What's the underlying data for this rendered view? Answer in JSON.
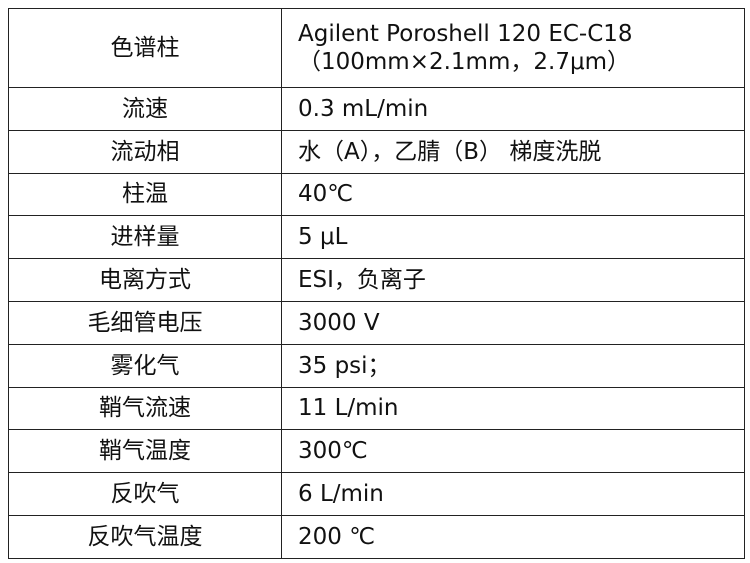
{
  "table": {
    "rows": [
      [
        "色谱柱",
        [
          "Agilent Poroshell 120 EC-C18",
          "（100mm×2.1mm，2.7μm）"
        ]
      ],
      [
        "流速",
        "0.3 mL/min"
      ],
      [
        "流动相",
        "水（A），乙腈（B） 梯度洗脱"
      ],
      [
        "柱温",
        "40℃"
      ],
      [
        "进样量",
        "5 μL"
      ],
      [
        "电离方式",
        "ESI，负离子"
      ],
      [
        "毛细管电压",
        "3000 V"
      ],
      [
        "雾化气",
        "35 psi；"
      ],
      [
        "鞘气流速",
        "11 L/min"
      ],
      [
        "鞘气温度",
        "300℃"
      ],
      [
        "反吹气",
        "6 L/min"
      ],
      [
        "反吹气温度",
        "200 ℃"
      ]
    ]
  }
}
